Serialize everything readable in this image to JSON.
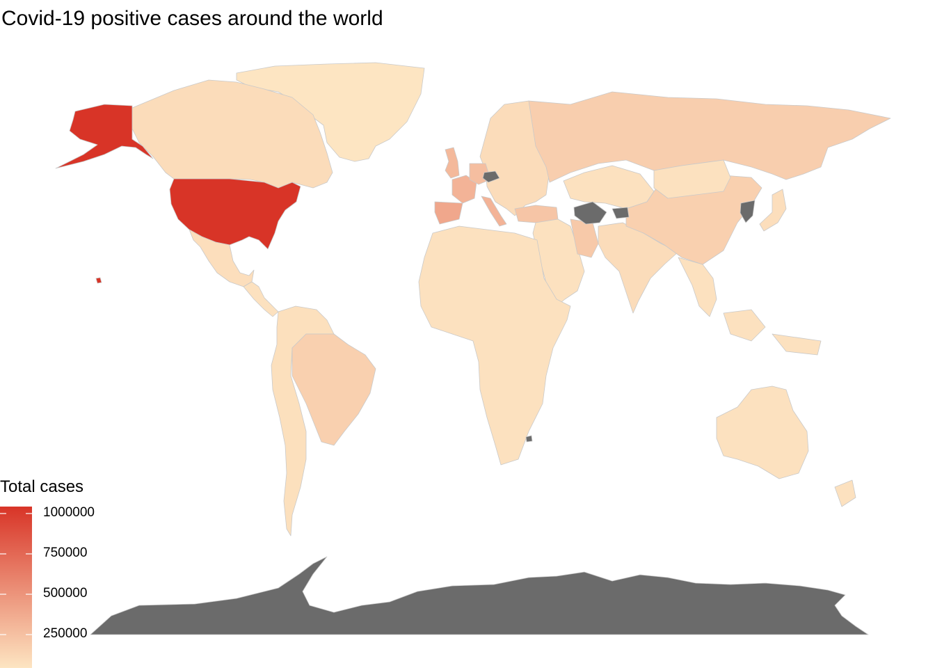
{
  "title": "Covid-19 positive cases around the world",
  "colors": {
    "background": "#ffffff",
    "border": "#c9c9c9",
    "no_data": "#6b6b6b",
    "scale_low": "#fde5c2",
    "scale_high": "#d83427"
  },
  "legend": {
    "title": "Total cases",
    "min": 0,
    "max": 1000000,
    "ticks": [
      {
        "value": 1000000,
        "label": "1000000"
      },
      {
        "value": 750000,
        "label": "750000"
      },
      {
        "value": 500000,
        "label": "500000"
      },
      {
        "value": 250000,
        "label": "250000"
      }
    ]
  },
  "regions": [
    {
      "name": "United States",
      "level": 1.0
    },
    {
      "name": "Alaska",
      "level": 1.0
    },
    {
      "name": "Hawaii",
      "level": 1.0
    },
    {
      "name": "Canada",
      "level": 0.05
    },
    {
      "name": "Greenland",
      "level": 0.0
    },
    {
      "name": "Mexico",
      "level": 0.04
    },
    {
      "name": "Central America",
      "level": 0.02
    },
    {
      "name": "Brazil",
      "level": 0.12
    },
    {
      "name": "South America",
      "level": 0.03
    },
    {
      "name": "Spain",
      "level": 0.35
    },
    {
      "name": "France",
      "level": 0.28
    },
    {
      "name": "Italy",
      "level": 0.28
    },
    {
      "name": "United Kingdom",
      "level": 0.25
    },
    {
      "name": "Germany",
      "level": 0.22
    },
    {
      "name": "Europe",
      "level": 0.05
    },
    {
      "name": "Turkey",
      "level": 0.18
    },
    {
      "name": "Russia",
      "level": 0.13
    },
    {
      "name": "Iran",
      "level": 0.16
    },
    {
      "name": "China",
      "level": 0.12
    },
    {
      "name": "India",
      "level": 0.05
    },
    {
      "name": "Japan",
      "level": 0.04
    },
    {
      "name": "Africa",
      "level": 0.02
    },
    {
      "name": "Australia",
      "level": 0.02
    },
    {
      "name": "Czech Republic",
      "level": null
    },
    {
      "name": "Turkmenistan",
      "level": null
    },
    {
      "name": "Tajikistan",
      "level": null
    },
    {
      "name": "North Korea",
      "level": null
    },
    {
      "name": "Lesotho",
      "level": null
    },
    {
      "name": "Antarctica",
      "level": null
    }
  ]
}
